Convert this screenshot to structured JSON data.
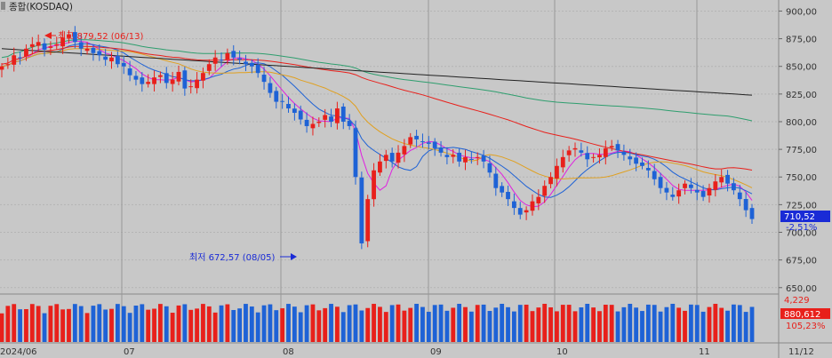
{
  "title": "종합(KOSDAQ)",
  "price_axis": {
    "ticks": [
      "900,00",
      "875,00",
      "850,00",
      "825,00",
      "800,00",
      "775,00",
      "750,00",
      "725,00",
      "700,00",
      "675,00",
      "650,00"
    ],
    "current_value": "710,52",
    "change_pct": "-2,51%"
  },
  "volume_axis": {
    "top_label": "4,229",
    "current_value": "880,612",
    "pct": "105,23%"
  },
  "date_axis": {
    "labels": [
      "2024/06",
      "07",
      "08",
      "09",
      "10",
      "11",
      "11/12"
    ]
  },
  "annotations": {
    "high": "최고 879,52 (06/13)",
    "low": "최저 672,57 (08/05)"
  },
  "colors": {
    "background": "#c8c8c8",
    "up": "#e8201b",
    "down": "#1e62d6",
    "ma5": "#e020e0",
    "ma10": "#1e62d6",
    "ma20": "#e0a020",
    "ma60": "#e8201b",
    "ma120": "#2e9e6e",
    "ma240": "#222222",
    "high_label": "#e8201b",
    "low_label": "#1a2bd6"
  },
  "chart_data": {
    "type": "line",
    "title": "종합(KOSDAQ)",
    "x": [
      "2024/06",
      "07",
      "08",
      "09",
      "10",
      "11"
    ],
    "ylim": [
      645,
      910
    ],
    "ohlc_close": [
      850,
      852,
      860,
      858,
      866,
      870,
      872,
      865,
      868,
      870,
      876,
      879,
      872,
      866,
      866,
      862,
      860,
      856,
      858,
      852,
      850,
      842,
      838,
      834,
      836,
      840,
      842,
      835,
      838,
      845,
      830,
      832,
      838,
      844,
      852,
      858,
      856,
      862,
      858,
      856,
      852,
      850,
      844,
      836,
      826,
      818,
      818,
      812,
      808,
      802,
      796,
      798,
      800,
      806,
      800,
      812,
      800,
      796,
      750,
      690,
      730,
      756,
      764,
      770,
      764,
      772,
      778,
      786,
      784,
      782,
      780,
      776,
      772,
      768,
      770,
      764,
      768,
      766,
      768,
      764,
      754,
      740,
      736,
      730,
      722,
      716,
      720,
      728,
      732,
      742,
      750,
      760,
      768,
      774,
      776,
      772,
      766,
      768,
      770,
      776,
      778,
      774,
      770,
      766,
      762,
      760,
      756,
      748,
      740,
      736,
      732,
      738,
      744,
      740,
      736,
      732,
      740,
      746,
      750,
      744,
      738,
      730,
      720,
      712
    ],
    "high_annotation": {
      "date": "06/13",
      "value": 879.52
    },
    "low_annotation": {
      "date": "08/05",
      "value": 672.57
    },
    "current_close": 710.52,
    "change_pct": -2.51,
    "moving_averages": [
      "5",
      "10",
      "20",
      "60",
      "120",
      "240"
    ],
    "volume": {
      "current": 880612,
      "pct": 105.23
    },
    "grid": true
  }
}
